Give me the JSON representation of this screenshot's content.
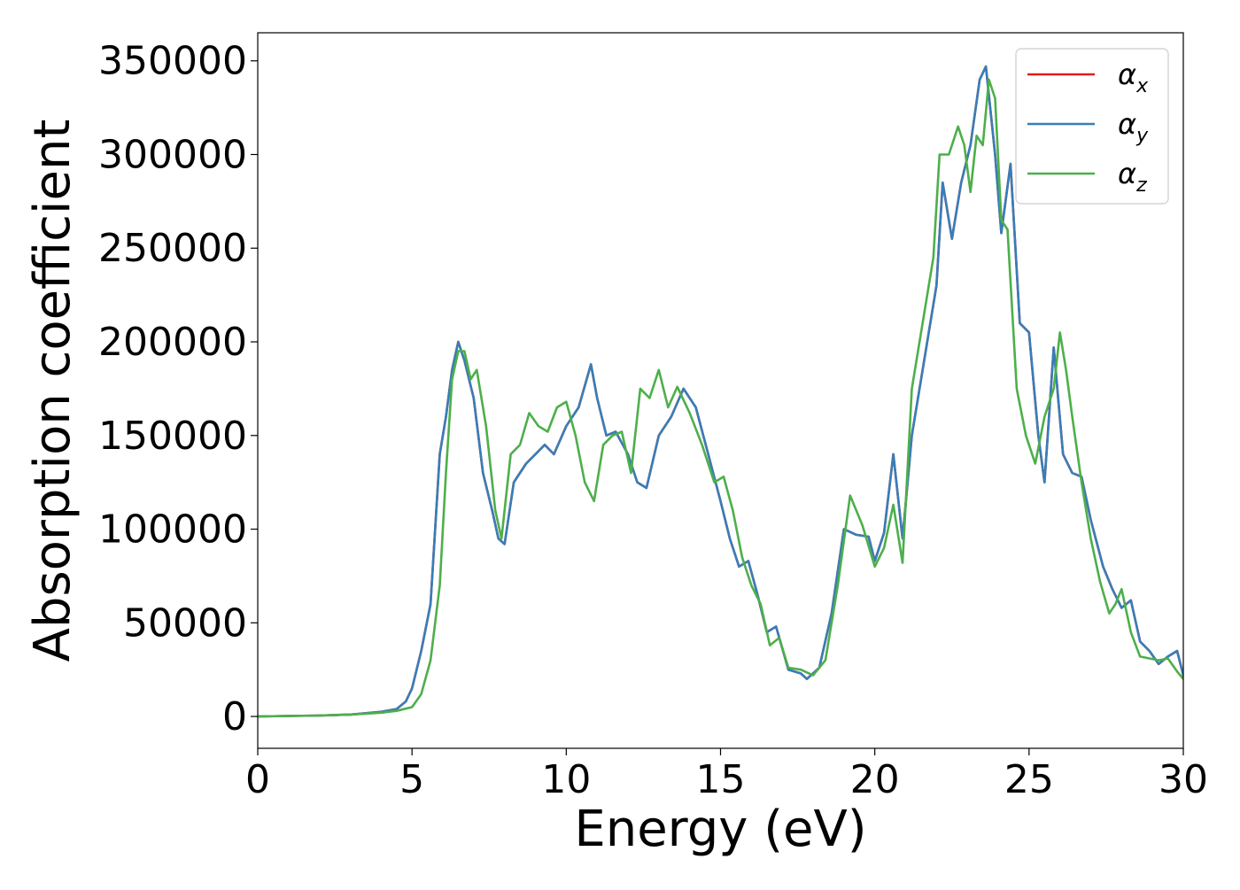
{
  "colors": {
    "x": "#e41a1c",
    "y": "#377eb8",
    "z": "#4daf4a"
  },
  "chart_data": {
    "type": "line",
    "title": "",
    "xlabel": "Energy (eV)",
    "ylabel": "Absorption coefficient",
    "xlim": [
      0,
      30
    ],
    "ylim": [
      -17000,
      365000
    ],
    "xticks": [
      0,
      5,
      10,
      15,
      20,
      25,
      30
    ],
    "yticks": [
      0,
      50000,
      100000,
      150000,
      200000,
      250000,
      300000,
      350000
    ],
    "grid": false,
    "legend_position": "top-right",
    "series": [
      {
        "key": "x",
        "name": "α_x",
        "legend_main": "α",
        "legend_sub": "x",
        "color": "#e41a1c",
        "x": [
          0,
          2,
          3,
          4,
          4.5,
          4.8,
          5.0,
          5.3,
          5.6,
          5.9,
          6.1,
          6.3,
          6.5,
          6.7,
          7.0,
          7.3,
          7.6,
          7.8,
          8.0,
          8.3,
          8.7,
          9.0,
          9.3,
          9.6,
          10.0,
          10.4,
          10.8,
          11.0,
          11.3,
          11.6,
          12.0,
          12.3,
          12.6,
          13.0,
          13.4,
          13.8,
          14.2,
          14.6,
          15.0,
          15.3,
          15.6,
          15.9,
          16.2,
          16.5,
          16.8,
          17.2,
          17.6,
          17.8,
          18.2,
          18.6,
          19.0,
          19.4,
          19.8,
          20.0,
          20.3,
          20.6,
          20.9,
          21.2,
          21.6,
          22.0,
          22.2,
          22.5,
          22.8,
          23.1,
          23.4,
          23.6,
          23.9,
          24.1,
          24.4,
          24.7,
          25.0,
          25.3,
          25.5,
          25.8,
          26.1,
          26.4,
          26.7,
          27.0,
          27.4,
          27.7,
          28.0,
          28.3,
          28.6,
          28.9,
          29.2,
          29.5,
          29.8,
          30.0
        ],
        "y": [
          0,
          500,
          1000,
          2500,
          4000,
          8000,
          15000,
          35000,
          60000,
          140000,
          160000,
          185000,
          200000,
          190000,
          170000,
          130000,
          110000,
          95000,
          92000,
          125000,
          135000,
          140000,
          145000,
          140000,
          155000,
          165000,
          188000,
          170000,
          150000,
          152000,
          140000,
          125000,
          122000,
          150000,
          160000,
          175000,
          165000,
          140000,
          115000,
          95000,
          80000,
          83000,
          65000,
          45000,
          48000,
          25000,
          23000,
          20000,
          26000,
          55000,
          100000,
          97000,
          96000,
          83000,
          98000,
          140000,
          95000,
          150000,
          190000,
          230000,
          285000,
          255000,
          285000,
          305000,
          340000,
          347000,
          300000,
          258000,
          295000,
          210000,
          205000,
          150000,
          125000,
          197000,
          140000,
          130000,
          128000,
          105000,
          80000,
          68000,
          58000,
          62000,
          40000,
          35000,
          28000,
          32000,
          35000,
          22000
        ]
      },
      {
        "key": "y",
        "name": "α_y",
        "legend_main": "α",
        "legend_sub": "y",
        "color": "#377eb8",
        "x": [
          0,
          2,
          3,
          4,
          4.5,
          4.8,
          5.0,
          5.3,
          5.6,
          5.9,
          6.1,
          6.3,
          6.5,
          6.7,
          7.0,
          7.3,
          7.6,
          7.8,
          8.0,
          8.3,
          8.7,
          9.0,
          9.3,
          9.6,
          10.0,
          10.4,
          10.8,
          11.0,
          11.3,
          11.6,
          12.0,
          12.3,
          12.6,
          13.0,
          13.4,
          13.8,
          14.2,
          14.6,
          15.0,
          15.3,
          15.6,
          15.9,
          16.2,
          16.5,
          16.8,
          17.2,
          17.6,
          17.8,
          18.2,
          18.6,
          19.0,
          19.4,
          19.8,
          20.0,
          20.3,
          20.6,
          20.9,
          21.2,
          21.6,
          22.0,
          22.2,
          22.5,
          22.8,
          23.1,
          23.4,
          23.6,
          23.9,
          24.1,
          24.4,
          24.7,
          25.0,
          25.3,
          25.5,
          25.8,
          26.1,
          26.4,
          26.7,
          27.0,
          27.4,
          27.7,
          28.0,
          28.3,
          28.6,
          28.9,
          29.2,
          29.5,
          29.8,
          30.0
        ],
        "y": [
          0,
          500,
          1000,
          2500,
          4000,
          8000,
          15000,
          35000,
          60000,
          140000,
          160000,
          185000,
          200000,
          190000,
          170000,
          130000,
          110000,
          95000,
          92000,
          125000,
          135000,
          140000,
          145000,
          140000,
          155000,
          165000,
          188000,
          170000,
          150000,
          152000,
          140000,
          125000,
          122000,
          150000,
          160000,
          175000,
          165000,
          140000,
          115000,
          95000,
          80000,
          83000,
          65000,
          45000,
          48000,
          25000,
          23000,
          20000,
          26000,
          55000,
          100000,
          97000,
          96000,
          83000,
          98000,
          140000,
          95000,
          150000,
          190000,
          230000,
          285000,
          255000,
          285000,
          305000,
          340000,
          347000,
          300000,
          258000,
          295000,
          210000,
          205000,
          150000,
          125000,
          197000,
          140000,
          130000,
          128000,
          105000,
          80000,
          68000,
          58000,
          62000,
          40000,
          35000,
          28000,
          32000,
          35000,
          22000
        ]
      },
      {
        "key": "z",
        "name": "α_z",
        "legend_main": "α",
        "legend_sub": "z",
        "color": "#4daf4a",
        "x": [
          0,
          2,
          3,
          4,
          4.5,
          5.0,
          5.3,
          5.6,
          5.9,
          6.1,
          6.3,
          6.5,
          6.7,
          6.9,
          7.1,
          7.4,
          7.7,
          7.9,
          8.2,
          8.5,
          8.8,
          9.1,
          9.4,
          9.7,
          10.0,
          10.3,
          10.6,
          10.9,
          11.2,
          11.5,
          11.8,
          12.1,
          12.4,
          12.7,
          13.0,
          13.3,
          13.6,
          14.0,
          14.4,
          14.8,
          15.1,
          15.4,
          15.7,
          16.0,
          16.3,
          16.6,
          16.9,
          17.2,
          17.6,
          18.0,
          18.4,
          18.8,
          19.2,
          19.6,
          20.0,
          20.3,
          20.6,
          20.9,
          21.2,
          21.6,
          21.9,
          22.1,
          22.4,
          22.7,
          22.9,
          23.1,
          23.3,
          23.5,
          23.7,
          23.9,
          24.1,
          24.3,
          24.6,
          24.9,
          25.2,
          25.5,
          25.8,
          26.0,
          26.2,
          26.4,
          26.7,
          27.0,
          27.3,
          27.6,
          27.8,
          28.0,
          28.3,
          28.6,
          28.9,
          29.2,
          29.5,
          29.8,
          30.0
        ],
        "y": [
          0,
          500,
          1000,
          2000,
          3000,
          5000,
          12000,
          30000,
          70000,
          130000,
          180000,
          195000,
          195000,
          180000,
          185000,
          155000,
          110000,
          95000,
          140000,
          145000,
          162000,
          155000,
          152000,
          165000,
          168000,
          150000,
          125000,
          115000,
          145000,
          150000,
          152000,
          130000,
          175000,
          170000,
          185000,
          165000,
          176000,
          162000,
          145000,
          125000,
          128000,
          110000,
          85000,
          70000,
          60000,
          38000,
          42000,
          26000,
          25000,
          22000,
          30000,
          70000,
          118000,
          102000,
          80000,
          90000,
          113000,
          82000,
          175000,
          215000,
          245000,
          300000,
          300000,
          315000,
          305000,
          280000,
          310000,
          305000,
          340000,
          330000,
          265000,
          260000,
          175000,
          150000,
          135000,
          160000,
          175000,
          205000,
          185000,
          160000,
          125000,
          95000,
          72000,
          55000,
          60000,
          68000,
          45000,
          32000,
          31000,
          30000,
          31000,
          24000,
          20000
        ]
      }
    ]
  }
}
